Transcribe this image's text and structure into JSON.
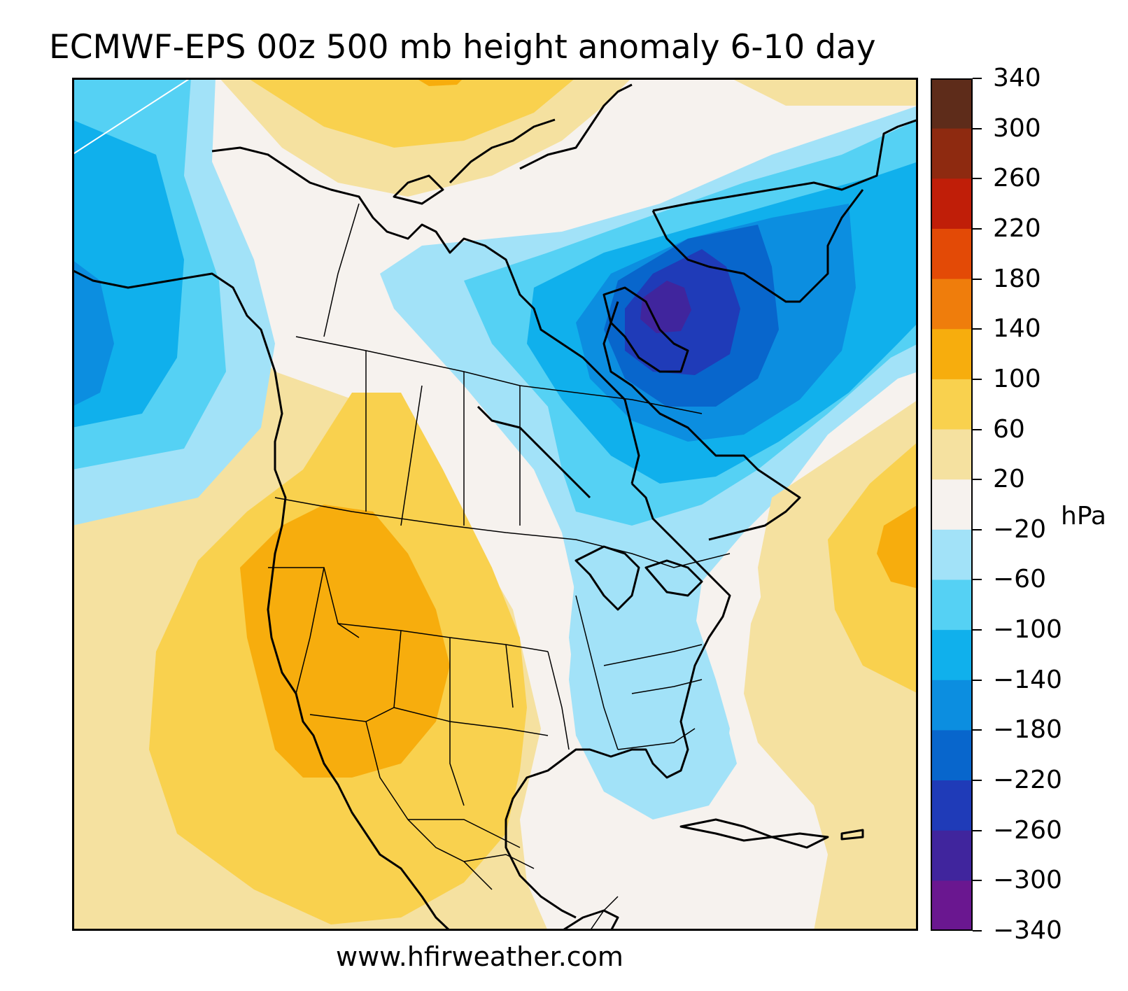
{
  "title": "ECMWF-EPS 00z 500 mb height anomaly 6-10 day",
  "footer": "www.hfirweather.com",
  "colorbar": {
    "unit": "hPa",
    "ticks": [
      "340",
      "300",
      "260",
      "220",
      "180",
      "140",
      "100",
      "60",
      "20",
      "−20",
      "−60",
      "−100",
      "−140",
      "−180",
      "−220",
      "−260",
      "−300",
      "−340"
    ],
    "bins": [
      {
        "range": "300 to 340",
        "color": "#5e2c1a"
      },
      {
        "range": "260 to 300",
        "color": "#8e2a10"
      },
      {
        "range": "220 to 260",
        "color": "#c01e08"
      },
      {
        "range": "180 to 220",
        "color": "#e34a06"
      },
      {
        "range": "140 to 180",
        "color": "#ef7d0c"
      },
      {
        "range": "100 to 140",
        "color": "#f7ad0d"
      },
      {
        "range": "60 to 100",
        "color": "#f9d14e"
      },
      {
        "range": "20 to 60",
        "color": "#f5e1a0"
      },
      {
        "range": "-20 to 20",
        "color": "#f6f2ee"
      },
      {
        "range": "-60 to -20",
        "color": "#a2e2f8"
      },
      {
        "range": "-100 to -60",
        "color": "#55d1f4"
      },
      {
        "range": "-140 to -100",
        "color": "#10b0ec"
      },
      {
        "range": "-180 to -140",
        "color": "#0c8ee0"
      },
      {
        "range": "-220 to -180",
        "color": "#0866cc"
      },
      {
        "range": "-260 to -220",
        "color": "#1f3bb8"
      },
      {
        "range": "-300 to -260",
        "color": "#40259d"
      },
      {
        "range": "-340 to -300",
        "color": "#6a1790"
      }
    ]
  },
  "map": {
    "region": "North America",
    "features": [
      "trough centered over Baffin Bay",
      "ridge over western United States",
      "weak trough over southeastern United States",
      "ridge over western Atlantic"
    ]
  }
}
